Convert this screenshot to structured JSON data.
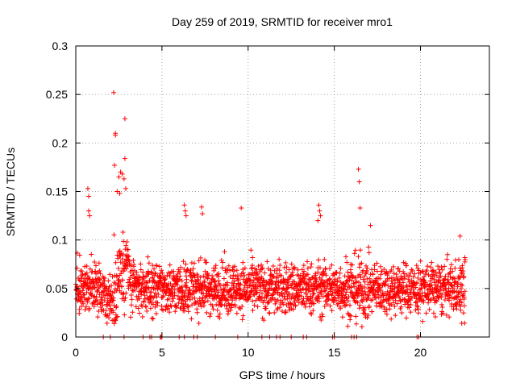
{
  "chart_data": {
    "type": "scatter",
    "title": "Day 259 of 2019, SRMTID for receiver mro1",
    "xlabel": "GPS time / hours",
    "ylabel": "SRMTID / TECUs",
    "xlim": [
      0,
      24
    ],
    "ylim": [
      0,
      0.3
    ],
    "x_ticks": [
      0,
      5,
      10,
      15,
      20
    ],
    "x_tick_labels": [
      "0",
      "5",
      "10",
      "15",
      "20"
    ],
    "y_ticks": [
      0,
      0.05,
      0.1,
      0.15,
      0.2,
      0.25,
      0.3
    ],
    "y_tick_labels": [
      "0",
      "0.05",
      "0.1",
      "0.15",
      "0.2",
      "0.25",
      "0.3"
    ],
    "grid": true,
    "marker": "plus",
    "color": "#ff0000",
    "x_data_end": 22.6,
    "series": [
      {
        "name": "SRMTID",
        "description_points": [
          {
            "x": 2.2,
            "y": 0.252
          },
          {
            "x": 2.85,
            "y": 0.225
          },
          {
            "x": 2.3,
            "y": 0.21
          },
          {
            "x": 2.3,
            "y": 0.208
          },
          {
            "x": 2.85,
            "y": 0.184
          },
          {
            "x": 2.25,
            "y": 0.177
          },
          {
            "x": 2.6,
            "y": 0.17
          },
          {
            "x": 2.7,
            "y": 0.168
          },
          {
            "x": 2.5,
            "y": 0.165
          },
          {
            "x": 2.8,
            "y": 0.163
          },
          {
            "x": 2.9,
            "y": 0.153
          },
          {
            "x": 2.4,
            "y": 0.15
          },
          {
            "x": 2.55,
            "y": 0.148
          },
          {
            "x": 0.7,
            "y": 0.153
          },
          {
            "x": 0.75,
            "y": 0.145
          },
          {
            "x": 0.75,
            "y": 0.13
          },
          {
            "x": 0.8,
            "y": 0.125
          },
          {
            "x": 6.3,
            "y": 0.136
          },
          {
            "x": 6.35,
            "y": 0.13
          },
          {
            "x": 6.4,
            "y": 0.125
          },
          {
            "x": 7.3,
            "y": 0.134
          },
          {
            "x": 7.35,
            "y": 0.127
          },
          {
            "x": 9.6,
            "y": 0.133
          },
          {
            "x": 14.1,
            "y": 0.136
          },
          {
            "x": 14.15,
            "y": 0.13
          },
          {
            "x": 14.2,
            "y": 0.125
          },
          {
            "x": 14.05,
            "y": 0.12
          },
          {
            "x": 16.4,
            "y": 0.173
          },
          {
            "x": 16.45,
            "y": 0.16
          },
          {
            "x": 16.5,
            "y": 0.133
          },
          {
            "x": 17.1,
            "y": 0.115
          },
          {
            "x": 22.3,
            "y": 0.104
          }
        ],
        "zero_points_x": [
          1.6,
          2.0,
          2.8,
          3.9,
          4.3,
          4.4,
          4.9,
          4.95,
          5.0,
          6.0,
          6.3,
          6.85,
          7.05,
          8.1,
          9.4,
          10.8,
          11.25,
          11.65,
          11.85,
          12.5,
          13.2,
          13.4,
          14.9,
          15.0,
          16.0,
          16.15,
          16.3,
          19.8,
          19.9
        ],
        "baseline": {
          "range_x": [
            0,
            22.6
          ],
          "typical_y": [
            0.02,
            0.09
          ],
          "center_y": 0.05,
          "approx_count": 2200
        }
      }
    ]
  }
}
